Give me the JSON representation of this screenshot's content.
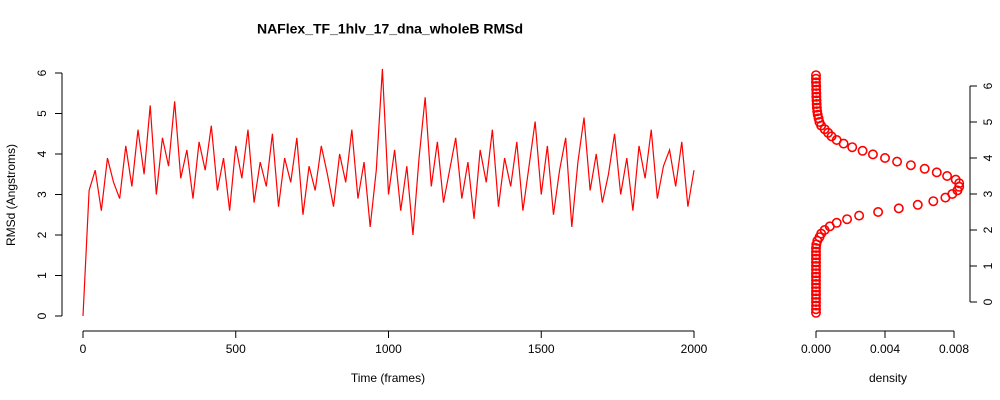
{
  "chart_data": [
    {
      "type": "line",
      "title": "NAFlex_TF_1hlv_17_dna_wholeB RMSd",
      "x_label": "Time (frames)",
      "y_label": "RMSd (Angstroms)",
      "color": "#ff0000",
      "x": [
        0,
        20,
        40,
        60,
        80,
        100,
        120,
        140,
        160,
        180,
        200,
        220,
        240,
        260,
        280,
        300,
        320,
        340,
        360,
        380,
        400,
        420,
        440,
        460,
        480,
        500,
        520,
        540,
        560,
        580,
        600,
        620,
        640,
        660,
        680,
        700,
        720,
        740,
        760,
        780,
        800,
        820,
        840,
        860,
        880,
        900,
        920,
        940,
        960,
        980,
        1000,
        1020,
        1040,
        1060,
        1080,
        1100,
        1120,
        1140,
        1160,
        1180,
        1200,
        1220,
        1240,
        1260,
        1280,
        1300,
        1320,
        1340,
        1360,
        1380,
        1400,
        1420,
        1440,
        1460,
        1480,
        1500,
        1520,
        1540,
        1560,
        1580,
        1600,
        1620,
        1640,
        1660,
        1680,
        1700,
        1720,
        1740,
        1760,
        1780,
        1800,
        1820,
        1840,
        1860,
        1880,
        1900,
        1920,
        1940,
        1960,
        1980,
        2000
      ],
      "values": [
        0,
        3.1,
        3.6,
        2.6,
        3.9,
        3.3,
        2.9,
        4.2,
        3.2,
        4.6,
        3.5,
        5.2,
        3.0,
        4.4,
        3.7,
        5.3,
        3.4,
        4.1,
        2.9,
        4.3,
        3.6,
        4.7,
        3.1,
        3.9,
        2.6,
        4.2,
        3.4,
        4.6,
        2.8,
        3.8,
        3.2,
        4.5,
        2.7,
        3.9,
        3.3,
        4.4,
        2.5,
        3.7,
        3.1,
        4.2,
        3.5,
        2.7,
        4.0,
        3.3,
        4.6,
        2.9,
        3.8,
        2.2,
        3.6,
        6.1,
        3.0,
        4.1,
        2.6,
        3.7,
        2.0,
        3.9,
        5.4,
        3.2,
        4.3,
        2.8,
        3.6,
        4.4,
        2.9,
        3.8,
        2.4,
        4.1,
        3.3,
        4.6,
        2.7,
        3.9,
        3.2,
        4.3,
        2.6,
        3.7,
        4.8,
        3.0,
        4.2,
        2.5,
        3.6,
        4.4,
        2.2,
        3.8,
        4.9,
        3.1,
        4.0,
        2.8,
        3.5,
        4.5,
        3.0,
        3.9,
        2.6,
        4.2,
        3.4,
        4.6,
        2.9,
        3.7,
        4.1,
        3.2,
        4.3,
        2.7,
        3.6
      ],
      "xlim": [
        0,
        2000
      ],
      "ylim": [
        0,
        6
      ],
      "xticks": [
        0,
        500,
        1000,
        1500,
        2000
      ],
      "yticks": [
        0,
        1,
        2,
        3,
        4,
        5,
        6
      ]
    },
    {
      "type": "scatter",
      "x_label": "density",
      "color": "#ff0000",
      "y": [
        -0.3,
        -0.2,
        -0.1,
        0,
        0.1,
        0.2,
        0.3,
        0.4,
        0.5,
        0.6,
        0.7,
        0.8,
        0.9,
        1,
        1.1,
        1.2,
        1.3,
        1.4,
        1.5,
        1.6,
        1.7,
        1.8,
        1.9,
        2,
        2.1,
        2.2,
        2.3,
        2.4,
        2.5,
        2.6,
        2.7,
        2.8,
        2.9,
        3,
        3.1,
        3.2,
        3.3,
        3.4,
        3.5,
        3.6,
        3.7,
        3.8,
        3.9,
        4,
        4.1,
        4.2,
        4.3,
        4.4,
        4.5,
        4.6,
        4.7,
        4.8,
        4.9,
        5,
        5.1,
        5.2,
        5.3,
        5.4,
        5.5,
        5.6,
        5.7,
        5.8,
        5.9,
        6,
        6.1,
        6.2,
        6.3
      ],
      "x": [
        0,
        0,
        0,
        0,
        0,
        0,
        0,
        0,
        0,
        0,
        0,
        0,
        0,
        0,
        0,
        0,
        0,
        0,
        0,
        2e-05,
        8e-05,
        0.0002,
        0.0003,
        0.0005,
        0.0008,
        0.0012,
        0.0018,
        0.0025,
        0.0036,
        0.0048,
        0.0059,
        0.0068,
        0.0075,
        0.0079,
        0.0082,
        0.0083,
        0.0083,
        0.0081,
        0.0076,
        0.007,
        0.0063,
        0.0055,
        0.0047,
        0.004,
        0.0033,
        0.0027,
        0.0021,
        0.0016,
        0.0012,
        0.0009,
        0.0007,
        0.0005,
        0.0003,
        0.0002,
        0.00015,
        0.0001,
        7e-05,
        5e-05,
        4e-05,
        3e-05,
        2e-05,
        2e-05,
        1e-05,
        1e-05,
        0,
        0,
        0
      ],
      "xlim": [
        0,
        0.008
      ],
      "ylim": [
        0,
        6
      ],
      "xticks": [
        {
          "value": 0,
          "label": "0.000"
        },
        {
          "value": 0.004,
          "label": "0.004"
        },
        {
          "value": 0.008,
          "label": "0.008"
        }
      ],
      "yticks": [
        0,
        1,
        2,
        3,
        4,
        5,
        6
      ],
      "y_axis_side": "right"
    }
  ]
}
